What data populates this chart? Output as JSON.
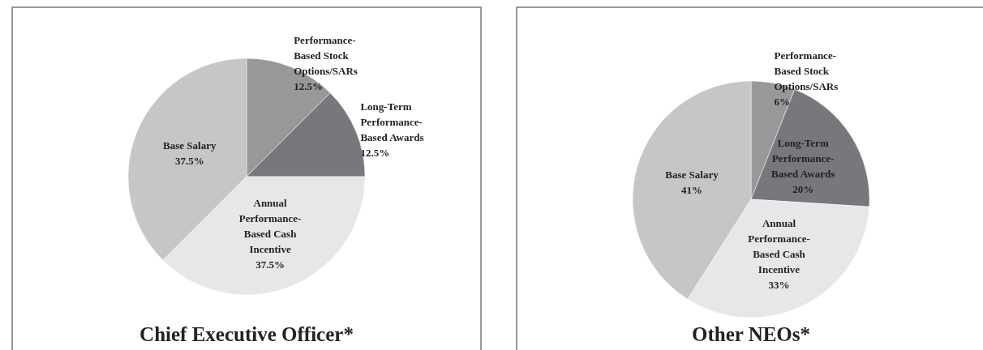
{
  "chart_data": [
    {
      "type": "pie",
      "title": "Chief Executive Officer*",
      "categories": [
        "Performance-\nBased Stock\nOptions/SARs",
        "Long-Term\nPerformance-\nBased Awards",
        "Annual\nPerformance-\nBased Cash\nIncentive",
        "Base Salary"
      ],
      "values": [
        12.5,
        12.5,
        37.5,
        37.5
      ],
      "value_labels": [
        "12.5%",
        "12.5%",
        "37.5%",
        "37.5%"
      ],
      "colors": [
        "#97989a",
        "#77787b",
        "#e6e7e8",
        "#c5c6c8"
      ]
    },
    {
      "type": "pie",
      "title": "Other NEOs*",
      "categories": [
        "Performance-\nBased Stock\nOptions/SARs",
        "Long-Term\nPerformance-\nBased Awards",
        "Annual\nPerformance-\nBased Cash\nIncentive",
        "Base Salary"
      ],
      "values": [
        6,
        20,
        33,
        41
      ],
      "value_labels": [
        "6%",
        "20%",
        "33%",
        "41%"
      ],
      "colors": [
        "#97989a",
        "#77787b",
        "#e6e7e8",
        "#c5c6c8"
      ]
    }
  ]
}
